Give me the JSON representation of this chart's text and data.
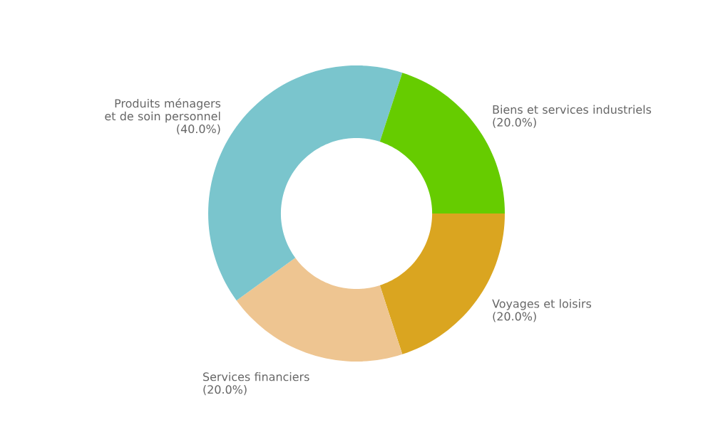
{
  "chart_data": {
    "type": "donut",
    "categories": [
      "Voyages et loisirs",
      "Services financiers",
      "Produits ménagers et de soin personnel",
      "Biens et services industriels"
    ],
    "values": [
      20,
      20,
      40,
      20
    ],
    "value_labels": [
      "(20.0%)",
      "(20.0%)",
      "(40.0%)",
      "(20.0%)"
    ],
    "colors": [
      "#daa520",
      "#eec591",
      "#7ac5cd",
      "#66cc00"
    ]
  }
}
